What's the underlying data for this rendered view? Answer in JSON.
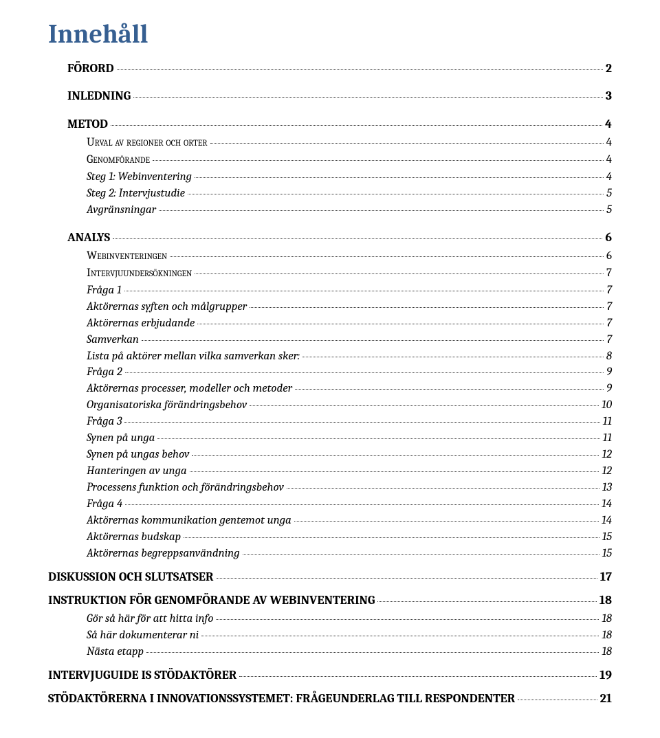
{
  "page": {
    "title": "Innehåll",
    "text_color": "#000000",
    "accent_color": "#365f91",
    "background": "#ffffff",
    "title_fontsize": 38,
    "body_fontsize": 17
  },
  "toc": [
    {
      "level": 1,
      "label": "FÖRORD",
      "page": "2"
    },
    {
      "level": 1,
      "label": "INLEDNING",
      "page": "3"
    },
    {
      "level": 1,
      "label": "METOD",
      "page": "4"
    },
    {
      "level": 2,
      "label": "Urval av regioner och orter",
      "page": "4"
    },
    {
      "level": 2,
      "label": "Genomförande",
      "page": "4"
    },
    {
      "level": 3,
      "label": "Steg 1: Webinventering",
      "page": "4"
    },
    {
      "level": 3,
      "label": "Steg 2: Intervjustudie",
      "page": "5"
    },
    {
      "level": 3,
      "label": "Avgränsningar",
      "page": "5"
    },
    {
      "level": 1,
      "label": "ANALYS",
      "page": "6"
    },
    {
      "level": 2,
      "label": "Webinventeringen",
      "page": "6"
    },
    {
      "level": 2,
      "label": "Intervjuundersökningen",
      "page": "7"
    },
    {
      "level": 3,
      "label": "Fråga 1",
      "page": "7"
    },
    {
      "level": 3,
      "label": "Aktörernas syften och målgrupper",
      "page": "7"
    },
    {
      "level": 3,
      "label": "Aktörernas erbjudande",
      "page": "7"
    },
    {
      "level": 3,
      "label": "Samverkan",
      "page": "7"
    },
    {
      "level": 3,
      "label": "Lista på aktörer mellan vilka samverkan sker:",
      "page": "8"
    },
    {
      "level": 3,
      "label": "Fråga 2",
      "page": "9"
    },
    {
      "level": 3,
      "label": "Aktörernas processer, modeller och metoder",
      "page": "9"
    },
    {
      "level": 3,
      "label": "Organisatoriska förändringsbehov",
      "page": "10"
    },
    {
      "level": 3,
      "label": "Fråga 3",
      "page": "11"
    },
    {
      "level": 3,
      "label": "Synen på unga",
      "page": "11"
    },
    {
      "level": 3,
      "label": "Synen på ungas behov",
      "page": "12"
    },
    {
      "level": 3,
      "label": "Hanteringen av unga",
      "page": "12"
    },
    {
      "level": 3,
      "label": "Processens funktion och förändringsbehov",
      "page": "13"
    },
    {
      "level": 3,
      "label": "Fråga 4",
      "page": "14"
    },
    {
      "level": 3,
      "label": "Aktörernas kommunikation gentemot unga",
      "page": "14"
    },
    {
      "level": 3,
      "label": "Aktörernas budskap",
      "page": "15"
    },
    {
      "level": 3,
      "label": "Aktörernas begreppsanvändning",
      "page": "15"
    },
    {
      "level": "1c",
      "label": "DISKUSSION OCH SLUTSATSER",
      "page": "17"
    },
    {
      "level": "1c",
      "label": "INSTRUKTION FÖR GENOMFÖRANDE AV WEBINVENTERING",
      "page": "18"
    },
    {
      "level": 3,
      "label": "Gör så här för att hitta info",
      "page": "18"
    },
    {
      "level": 3,
      "label": "Så här dokumenterar ni",
      "page": "18"
    },
    {
      "level": 3,
      "label": "Nästa etapp",
      "page": "18"
    },
    {
      "level": "1c",
      "label": "INTERVJUGUIDE IS STÖDAKTÖRER",
      "page": "19"
    },
    {
      "level": "1c",
      "label": "STÖDAKTÖRERNA I INNOVATIONSSYSTEMET: FRÅGEUNDERLAG TILL RESPONDENTER",
      "page": "21"
    }
  ]
}
